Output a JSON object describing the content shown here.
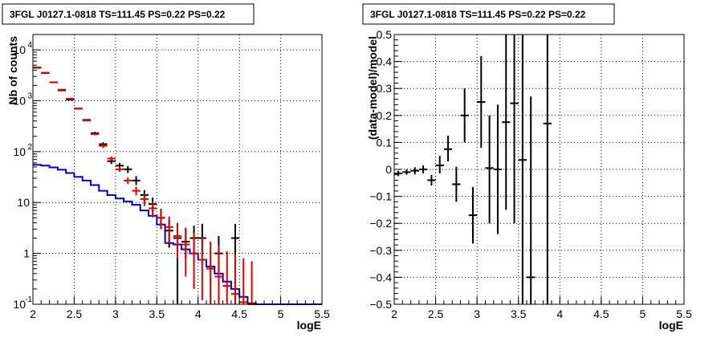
{
  "chart_data": [
    {
      "type": "histogram",
      "title": "3FGL J0127.1-0818 TS=111.45 PS=0.22 PS=0.22",
      "xlabel": "logE",
      "ylabel": "Nb of counts",
      "xlim": [
        2,
        5.5
      ],
      "ylim": [
        0.1,
        20000
      ],
      "ylog": true,
      "grid": true,
      "x_ticks": [
        "2",
        "2.5",
        "3",
        "3.5",
        "4",
        "4.5",
        "5",
        "5.5"
      ],
      "y_ticks": [
        {
          "value": 0.1,
          "base": "10",
          "exp": "-1"
        },
        {
          "value": 1,
          "base": "1",
          "exp": ""
        },
        {
          "value": 10,
          "base": "10",
          "exp": ""
        },
        {
          "value": 100,
          "base": "10",
          "exp": "2"
        },
        {
          "value": 1000,
          "base": "10",
          "exp": "3"
        },
        {
          "value": 10000,
          "base": "10",
          "exp": "4"
        }
      ],
      "series": [
        {
          "role": "data",
          "color": "#000000",
          "points": [
            {
              "x": 2.05,
              "y": 4500,
              "lo": 4500,
              "hi": 4500
            },
            {
              "x": 2.15,
              "y": 3500,
              "lo": 3500,
              "hi": 3500
            },
            {
              "x": 2.25,
              "y": 2300,
              "lo": 2300,
              "hi": 2300
            },
            {
              "x": 2.35,
              "y": 1600,
              "lo": 1600,
              "hi": 1600
            },
            {
              "x": 2.45,
              "y": 1050,
              "lo": 1050,
              "hi": 1050
            },
            {
              "x": 2.55,
              "y": 700,
              "lo": 700,
              "hi": 700
            },
            {
              "x": 2.65,
              "y": 420,
              "lo": 420,
              "hi": 420
            },
            {
              "x": 2.75,
              "y": 230,
              "lo": 215,
              "hi": 245
            },
            {
              "x": 2.85,
              "y": 140,
              "lo": 128,
              "hi": 152
            },
            {
              "x": 2.95,
              "y": 65,
              "lo": 57,
              "hi": 73
            },
            {
              "x": 3.05,
              "y": 53,
              "lo": 46,
              "hi": 60
            },
            {
              "x": 3.15,
              "y": 45,
              "lo": 38,
              "hi": 52
            },
            {
              "x": 3.25,
              "y": 27,
              "lo": 22,
              "hi": 33
            },
            {
              "x": 3.35,
              "y": 14,
              "lo": 10.5,
              "hi": 17.5
            },
            {
              "x": 3.45,
              "y": 9.3,
              "lo": 6.5,
              "hi": 12.5
            },
            {
              "x": 3.55,
              "y": 5,
              "lo": 3,
              "hi": 7.5
            },
            {
              "x": 3.65,
              "y": 2.8,
              "lo": 1.3,
              "hi": 4.6
            },
            {
              "x": 3.75,
              "y": 2,
              "lo": 0.1,
              "hi": 3.8
            },
            {
              "x": 3.85,
              "y": 1.7,
              "lo": 0.8,
              "hi": 3.1
            },
            {
              "x": 3.95,
              "y": 2,
              "lo": 0.7,
              "hi": 3.5
            },
            {
              "x": 4.05,
              "y": 2,
              "lo": 0.9,
              "hi": 3.8
            },
            {
              "x": 4.25,
              "y": 1,
              "lo": 0.4,
              "hi": 2.2
            },
            {
              "x": 4.45,
              "y": 2,
              "lo": 0.9,
              "hi": 3.8
            }
          ]
        },
        {
          "role": "model-points",
          "color": "#e00000",
          "points": [
            {
              "x": 2.05,
              "y": 4450,
              "lo": 4450,
              "hi": 4450
            },
            {
              "x": 2.15,
              "y": 3550,
              "lo": 3550,
              "hi": 3550
            },
            {
              "x": 2.25,
              "y": 2300,
              "lo": 2300,
              "hi": 2300
            },
            {
              "x": 2.35,
              "y": 1650,
              "lo": 1650,
              "hi": 1650
            },
            {
              "x": 2.45,
              "y": 1100,
              "lo": 1100,
              "hi": 1100
            },
            {
              "x": 2.55,
              "y": 700,
              "lo": 700,
              "hi": 700
            },
            {
              "x": 2.65,
              "y": 410,
              "lo": 410,
              "hi": 410
            },
            {
              "x": 2.75,
              "y": 220,
              "lo": 210,
              "hi": 230
            },
            {
              "x": 2.85,
              "y": 130,
              "lo": 118,
              "hi": 142
            },
            {
              "x": 2.95,
              "y": 73,
              "lo": 66,
              "hi": 80
            },
            {
              "x": 3.05,
              "y": 45,
              "lo": 40,
              "hi": 51
            },
            {
              "x": 3.15,
              "y": 27,
              "lo": 23,
              "hi": 31
            },
            {
              "x": 3.25,
              "y": 17,
              "lo": 13.8,
              "hi": 20.5
            },
            {
              "x": 3.35,
              "y": 11.7,
              "lo": 8.5,
              "hi": 15
            },
            {
              "x": 3.45,
              "y": 7.7,
              "lo": 5.1,
              "hi": 10.5
            },
            {
              "x": 3.55,
              "y": 5,
              "lo": 3.0,
              "hi": 7.2
            },
            {
              "x": 3.65,
              "y": 3.3,
              "lo": 1.6,
              "hi": 5.3
            },
            {
              "x": 3.75,
              "y": 2.2,
              "lo": 0.8,
              "hi": 4.0
            },
            {
              "x": 3.85,
              "y": 1.5,
              "lo": 0.35,
              "hi": 3.2
            },
            {
              "x": 3.95,
              "y": 1.0,
              "lo": 0.2,
              "hi": 2.5
            },
            {
              "x": 4.05,
              "y": 0.75,
              "lo": 0.12,
              "hi": 2.1
            },
            {
              "x": 4.15,
              "y": 0.5,
              "lo": 0.1,
              "hi": 1.7
            },
            {
              "x": 4.25,
              "y": 0.35,
              "lo": 0.1,
              "hi": 1.4
            },
            {
              "x": 4.35,
              "y": 0.23,
              "lo": 0.1,
              "hi": 1.1
            },
            {
              "x": 4.45,
              "y": 0.16,
              "lo": 0.1,
              "hi": 0.95
            },
            {
              "x": 4.55,
              "y": 0.11,
              "lo": 0.1,
              "hi": 0.8
            },
            {
              "x": 4.65,
              "y": 0.1,
              "lo": 0.1,
              "hi": 0.7
            }
          ]
        },
        {
          "role": "model-histogram",
          "color": "#0000cc",
          "bin_width": 0.1,
          "bins": [
            {
              "x": 2.0,
              "y": 55
            },
            {
              "x": 2.1,
              "y": 53
            },
            {
              "x": 2.2,
              "y": 49
            },
            {
              "x": 2.3,
              "y": 44
            },
            {
              "x": 2.4,
              "y": 38
            },
            {
              "x": 2.5,
              "y": 32
            },
            {
              "x": 2.6,
              "y": 27
            },
            {
              "x": 2.7,
              "y": 22
            },
            {
              "x": 2.8,
              "y": 17
            },
            {
              "x": 2.9,
              "y": 14
            },
            {
              "x": 3.0,
              "y": 12
            },
            {
              "x": 3.1,
              "y": 10.5
            },
            {
              "x": 3.2,
              "y": 9
            },
            {
              "x": 3.3,
              "y": 7
            },
            {
              "x": 3.4,
              "y": 5.5
            },
            {
              "x": 3.5,
              "y": 3.7
            },
            {
              "x": 3.6,
              "y": 1.6
            },
            {
              "x": 3.7,
              "y": 1.5
            },
            {
              "x": 3.8,
              "y": 1.2
            },
            {
              "x": 3.9,
              "y": 1.0
            },
            {
              "x": 4.0,
              "y": 0.75
            },
            {
              "x": 4.1,
              "y": 0.55
            },
            {
              "x": 4.2,
              "y": 0.4
            },
            {
              "x": 4.3,
              "y": 0.28
            },
            {
              "x": 4.4,
              "y": 0.2
            },
            {
              "x": 4.5,
              "y": 0.14
            },
            {
              "x": 4.6,
              "y": 0.105
            },
            {
              "x": 4.7,
              "y": 0.1
            },
            {
              "x": 4.8,
              "y": 0.1
            },
            {
              "x": 4.9,
              "y": 0.1
            },
            {
              "x": 5.0,
              "y": 0.1
            },
            {
              "x": 5.1,
              "y": 0.1
            },
            {
              "x": 5.2,
              "y": 0.1
            },
            {
              "x": 5.3,
              "y": 0.1
            },
            {
              "x": 5.4,
              "y": 0.1
            }
          ]
        }
      ]
    },
    {
      "type": "scatter",
      "title": "3FGL J0127.1-0818 TS=111.45 PS=0.22 PS=0.22",
      "xlabel": "logE",
      "ylabel": "(data-model)/model",
      "xlim": [
        2,
        5.5
      ],
      "ylim": [
        -0.5,
        0.5
      ],
      "grid": true,
      "x_ticks": [
        "2",
        "2.5",
        "3",
        "3.5",
        "4",
        "4.5",
        "5",
        "5.5"
      ],
      "y_ticks": [
        "−0.5",
        "−0.4",
        "−0.3",
        "−0.2",
        "−0.1",
        "0",
        "0.1",
        "0.2",
        "0.3",
        "0.4",
        "0.5"
      ],
      "series": [
        {
          "role": "residuals",
          "color": "#000000",
          "points": [
            {
              "x": 2.05,
              "y": -0.015,
              "lo": -0.025,
              "hi": -0.005
            },
            {
              "x": 2.15,
              "y": -0.01,
              "lo": -0.02,
              "hi": 0.0
            },
            {
              "x": 2.25,
              "y": -0.005,
              "lo": -0.018,
              "hi": 0.008
            },
            {
              "x": 2.35,
              "y": 0.0,
              "lo": -0.015,
              "hi": 0.015
            },
            {
              "x": 2.45,
              "y": -0.04,
              "lo": -0.06,
              "hi": -0.02
            },
            {
              "x": 2.55,
              "y": 0.015,
              "lo": -0.015,
              "hi": 0.05
            },
            {
              "x": 2.65,
              "y": 0.075,
              "lo": 0.03,
              "hi": 0.125
            },
            {
              "x": 2.75,
              "y": -0.055,
              "lo": -0.12,
              "hi": 0.01
            },
            {
              "x": 2.85,
              "y": 0.2,
              "lo": 0.1,
              "hi": 0.3
            },
            {
              "x": 2.95,
              "y": -0.17,
              "lo": -0.275,
              "hi": -0.065
            },
            {
              "x": 3.05,
              "y": 0.25,
              "lo": 0.08,
              "hi": 0.42
            },
            {
              "x": 3.15,
              "y": 0.005,
              "lo": -0.2,
              "hi": 0.2
            },
            {
              "x": 3.25,
              "y": 0.0,
              "lo": -0.24,
              "hi": 0.24
            },
            {
              "x": 3.35,
              "y": 0.175,
              "lo": -0.15,
              "hi": 0.5
            },
            {
              "x": 3.45,
              "y": 0.245,
              "lo": -0.2,
              "hi": 0.5
            },
            {
              "x": 3.55,
              "y": 0.035,
              "lo": -0.5,
              "hi": 0.5
            },
            {
              "x": 3.65,
              "y": -0.4,
              "lo": -0.5,
              "hi": 0.27
            },
            {
              "x": 3.85,
              "y": 0.17,
              "lo": -0.5,
              "hi": 0.5
            }
          ]
        }
      ]
    }
  ]
}
